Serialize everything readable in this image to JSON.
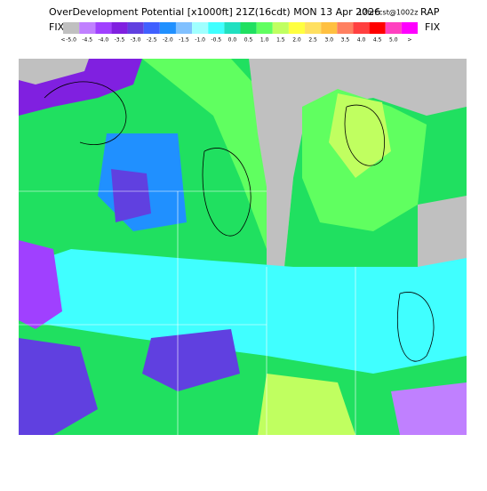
{
  "header": {
    "title": "OverDevelopment Potential [x1000ft] 21Z(16cdt) MON 13 Apr 2026",
    "forecast": "12hrFcst@1002z",
    "model": "RAP",
    "left_label": "FIX",
    "right_label": "FIX"
  },
  "colorbar": {
    "labels": [
      "<",
      "-5.0",
      "-4.5",
      "-4.0",
      "-3.5",
      "-3.0",
      "-2.5",
      "-2.0",
      "-1.5",
      "-1.0",
      "-0.5",
      "0.0",
      "0.5",
      "1.0",
      "1.5",
      "2.0",
      "2.5",
      "3.0",
      "3.5",
      "4.0",
      "4.5",
      "5.0",
      ">"
    ],
    "colors": [
      "#c0c0c0",
      "#c080ff",
      "#a040ff",
      "#8020e0",
      "#6040e0",
      "#4060ff",
      "#2090ff",
      "#80c0ff",
      "#a0ffff",
      "#40ffff",
      "#20e0c0",
      "#20e060",
      "#60ff60",
      "#c0ff60",
      "#ffff40",
      "#ffe060",
      "#ffc040",
      "#ff8060",
      "#ff4040",
      "#ff0000",
      "#ff40c0",
      "#ff00ff"
    ]
  }
}
